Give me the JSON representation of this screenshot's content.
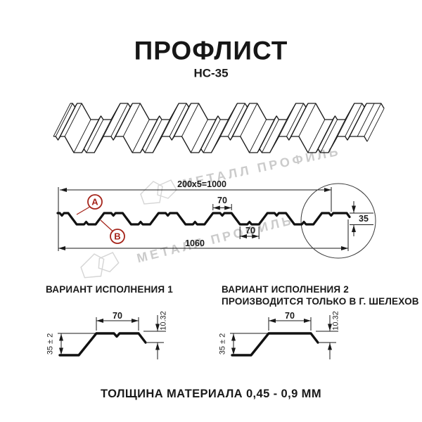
{
  "title": "ПРОФЛИСТ",
  "subtitle": "НС-35",
  "watermark": {
    "text": "МЕТАЛЛ ПРОФИЛЬ"
  },
  "cross_section": {
    "dim_total_top": "200x5=1000",
    "dim_module_top": "70",
    "dim_module_bottom": "70",
    "dim_total_bottom": "1060",
    "dim_height": "35",
    "label_a": "A",
    "label_b": "B"
  },
  "variant1": {
    "heading": "ВАРИАНТ ИСПОЛНЕНИЯ 1",
    "dim_top": "70",
    "dim_lip": "10.32",
    "dim_height": "35 ± 2"
  },
  "variant2": {
    "heading": "ВАРИАНТ ИСПОЛНЕНИЯ 2",
    "subheading": "ПРОИЗВОДИТСЯ ТОЛЬКО В Г. ШЕЛЕХОВ",
    "dim_top": "70",
    "dim_lip": "10.32",
    "dim_height": "35 ± 2"
  },
  "footer": "ТОЛЩИНА МАТЕРИАЛА 0,45 - 0,9 ММ",
  "colors": {
    "accent": "#a5241a",
    "line": "#1a1a1a",
    "watermark": "#cbcbcb"
  }
}
